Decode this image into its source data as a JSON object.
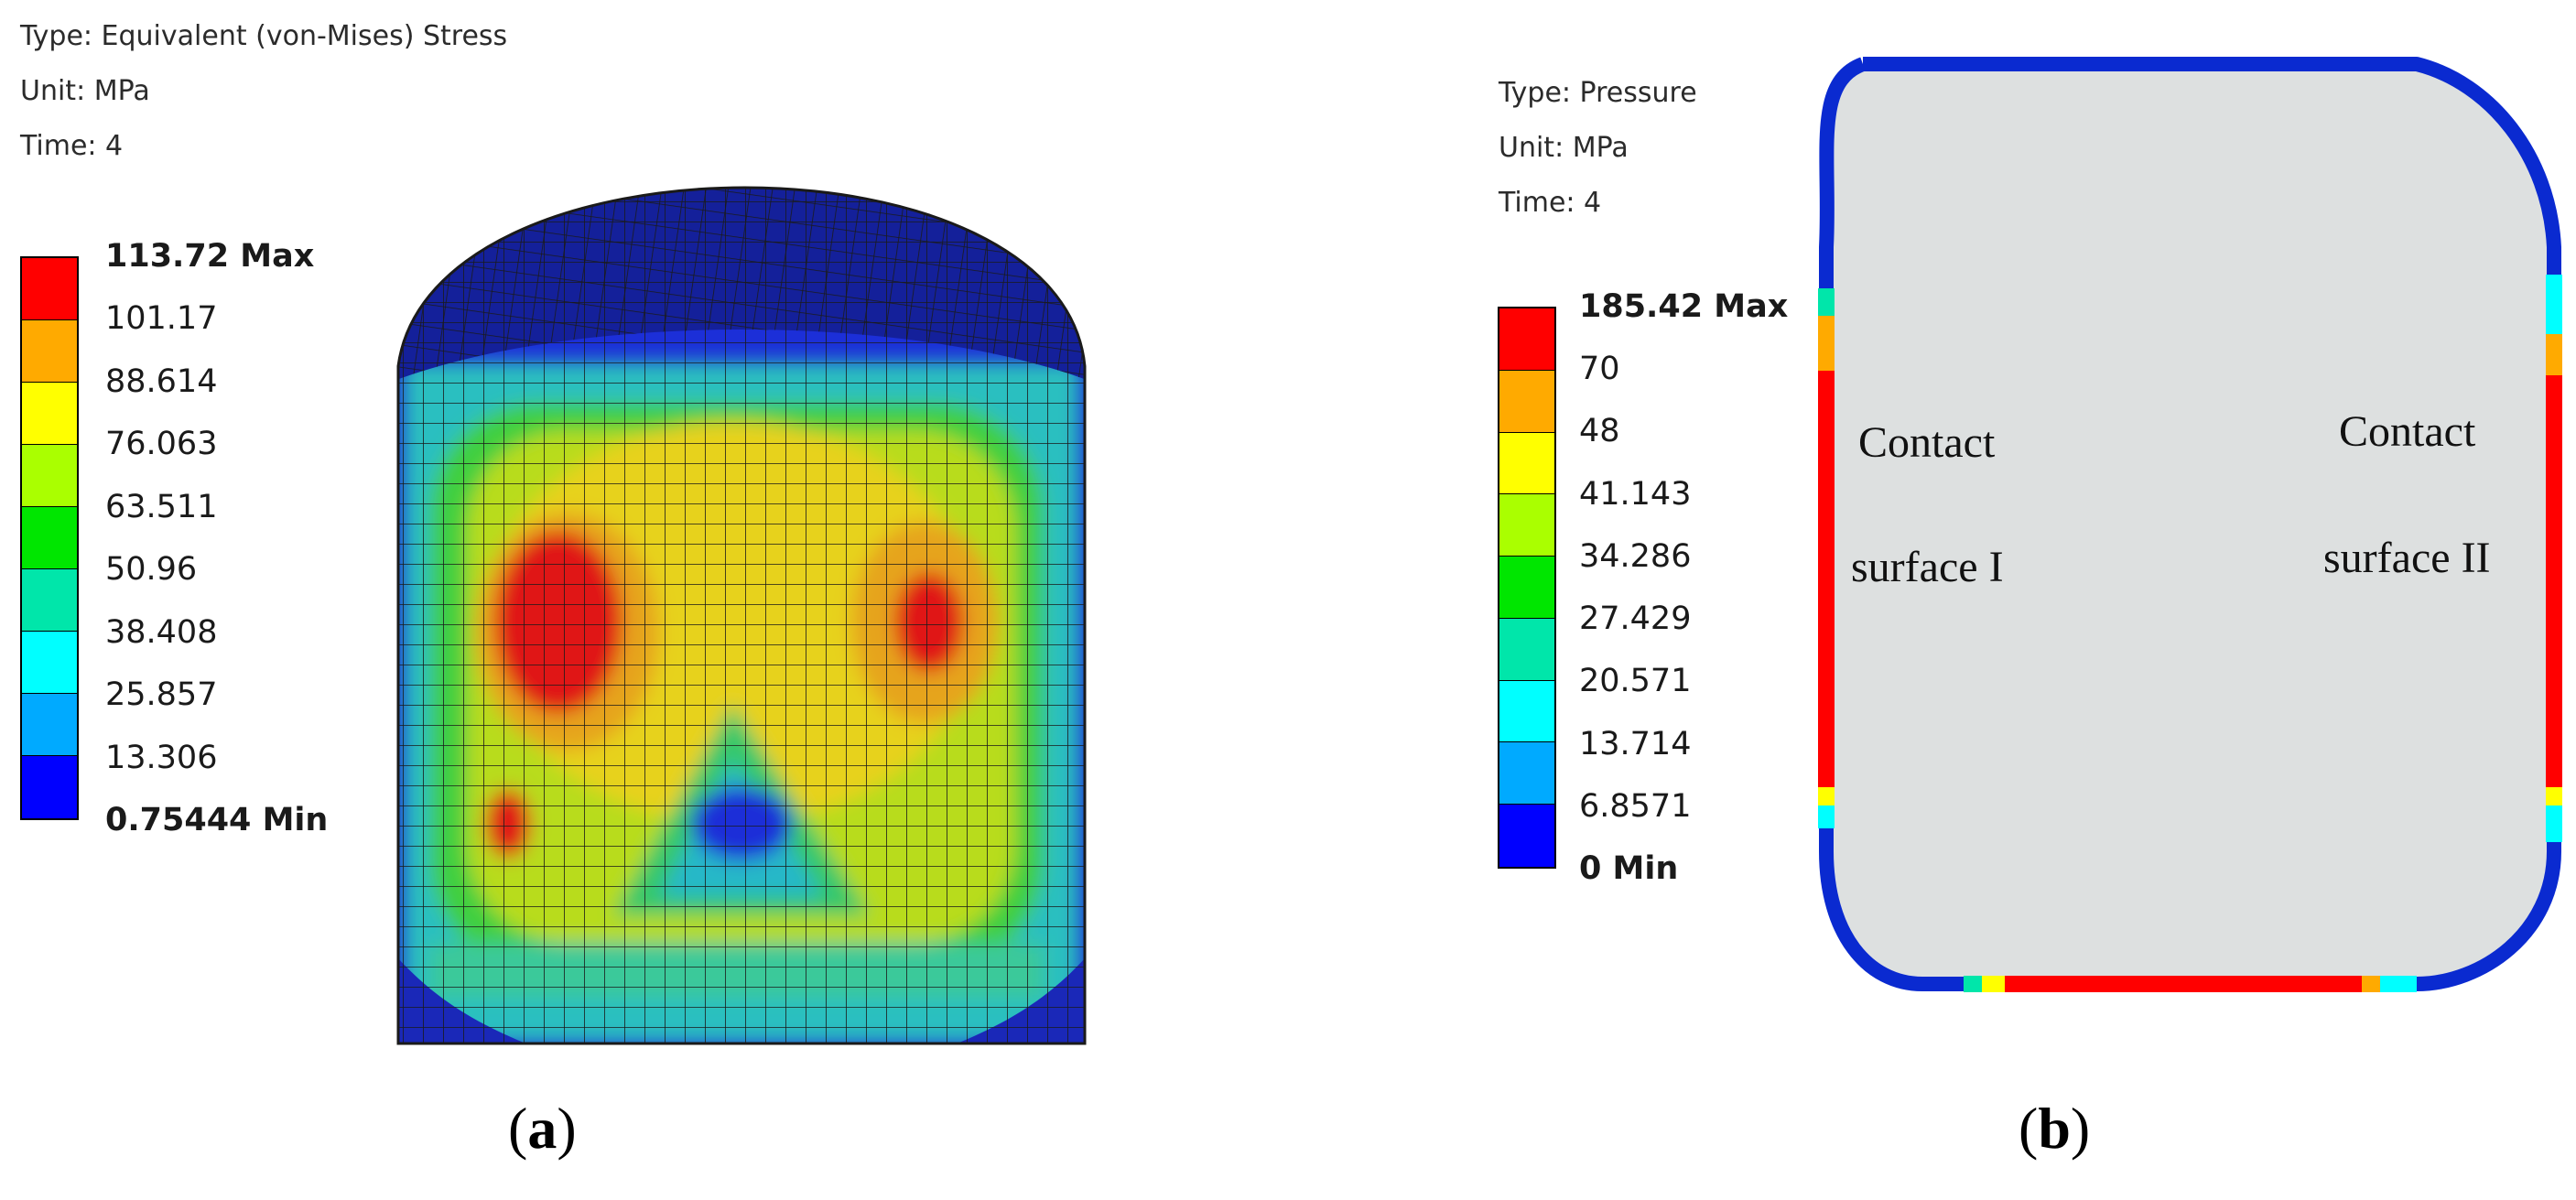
{
  "panel_a": {
    "info": {
      "type": "Type: Equivalent (von-Mises) Stress",
      "unit": "Unit: MPa",
      "time": "Time: 4"
    },
    "legend": {
      "labels": [
        "113.72 Max",
        "101.17",
        "88.614",
        "76.063",
        "63.511",
        "50.96",
        "38.408",
        "25.857",
        "13.306",
        "0.75444 Min"
      ],
      "colors": [
        "#ff0000",
        "#ffaa00",
        "#ffff00",
        "#aaff00",
        "#00e600",
        "#00e6aa",
        "#00ffff",
        "#00aaff",
        "#0000ff"
      ]
    },
    "caption_open": "(",
    "caption_letter": "a",
    "caption_close": ")"
  },
  "panel_b": {
    "info": {
      "type": "Type: Pressure",
      "unit": "Unit: MPa",
      "time": "Time: 4"
    },
    "legend": {
      "labels": [
        "185.42 Max",
        "70",
        "48",
        "41.143",
        "34.286",
        "27.429",
        "20.571",
        "13.714",
        "6.8571",
        "0 Min"
      ],
      "colors": [
        "#ff0000",
        "#ffaa00",
        "#ffff00",
        "#aaff00",
        "#00e600",
        "#00e6aa",
        "#00ffff",
        "#00aaff",
        "#0000ff"
      ]
    },
    "contact_1_line1": "Contact",
    "contact_1_line2": "surface I",
    "contact_2_line1": "Contact",
    "contact_2_line2": "surface II",
    "caption_open": "(",
    "caption_letter": "b",
    "caption_close": ")"
  },
  "colors": {
    "mesh_line": "#1a1a1a",
    "body_fill": "#dde0e0",
    "deep_blue": "#0a2ad0"
  }
}
